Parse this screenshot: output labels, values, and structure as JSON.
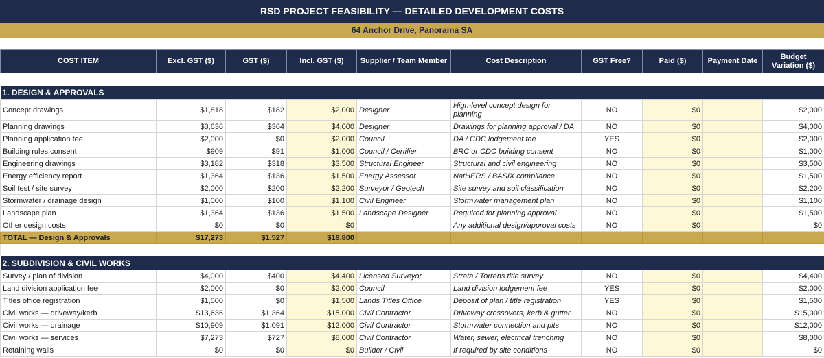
{
  "header": {
    "title": "RSD PROJECT FEASIBILITY — DETAILED DEVELOPMENT COSTS",
    "address": "64 Anchor Drive, Panorama SA"
  },
  "columns": [
    "COST ITEM",
    "Excl. GST ($)",
    "GST ($)",
    "Incl. GST ($)",
    "Supplier / Team Member",
    "Cost Description",
    "GST Free?",
    "Paid ($)",
    "Payment Date",
    "Budget Variation ($)"
  ],
  "sections": [
    {
      "title": "1. DESIGN & APPROVALS",
      "rows": [
        {
          "item": "Concept drawings",
          "excl": "$1,818",
          "gst": "$182",
          "incl": "$2,000",
          "supplier": "Designer",
          "desc": "High-level concept design for planning",
          "free": "NO",
          "paid": "$0",
          "date": "",
          "variation": "$2,000"
        },
        {
          "item": "Planning drawings",
          "excl": "$3,636",
          "gst": "$364",
          "incl": "$4,000",
          "supplier": "Designer",
          "desc": "Drawings for planning approval / DA",
          "free": "NO",
          "paid": "$0",
          "date": "",
          "variation": "$4,000"
        },
        {
          "item": "Planning application fee",
          "excl": "$2,000",
          "gst": "$0",
          "incl": "$2,000",
          "supplier": "Council",
          "desc": "DA / CDC lodgement fee",
          "free": "YES",
          "paid": "$0",
          "date": "",
          "variation": "$2,000"
        },
        {
          "item": "Building rules consent",
          "excl": "$909",
          "gst": "$91",
          "incl": "$1,000",
          "supplier": "Council / Certifier",
          "desc": "BRC or CDC building consent",
          "free": "NO",
          "paid": "$0",
          "date": "",
          "variation": "$1,000"
        },
        {
          "item": "Engineering drawings",
          "excl": "$3,182",
          "gst": "$318",
          "incl": "$3,500",
          "supplier": "Structural Engineer",
          "desc": "Structural and civil engineering",
          "free": "NO",
          "paid": "$0",
          "date": "",
          "variation": "$3,500"
        },
        {
          "item": "Energy efficiency report",
          "excl": "$1,364",
          "gst": "$136",
          "incl": "$1,500",
          "supplier": "Energy Assessor",
          "desc": "NatHERS / BASIX compliance",
          "free": "NO",
          "paid": "$0",
          "date": "",
          "variation": "$1,500"
        },
        {
          "item": "Soil test / site survey",
          "excl": "$2,000",
          "gst": "$200",
          "incl": "$2,200",
          "supplier": "Surveyor / Geotech",
          "desc": "Site survey and soil classification",
          "free": "NO",
          "paid": "$0",
          "date": "",
          "variation": "$2,200"
        },
        {
          "item": "Stormwater / drainage design",
          "excl": "$1,000",
          "gst": "$100",
          "incl": "$1,100",
          "supplier": "Civil Engineer",
          "desc": "Stormwater management plan",
          "free": "NO",
          "paid": "$0",
          "date": "",
          "variation": "$1,100"
        },
        {
          "item": "Landscape plan",
          "excl": "$1,364",
          "gst": "$136",
          "incl": "$1,500",
          "supplier": "Landscape Designer",
          "desc": "Required for planning approval",
          "free": "NO",
          "paid": "$0",
          "date": "",
          "variation": "$1,500"
        },
        {
          "item": "Other design costs",
          "excl": "$0",
          "gst": "$0",
          "incl": "$0",
          "supplier": "",
          "desc": "Any additional design/approval costs",
          "free": "NO",
          "paid": "$0",
          "date": "",
          "variation": "$0"
        }
      ],
      "total": {
        "label": "TOTAL — Design & Approvals",
        "excl": "$17,273",
        "gst": "$1,527",
        "incl": "$18,800"
      }
    },
    {
      "title": "2. SUBDIVISION & CIVIL WORKS",
      "rows": [
        {
          "item": "Survey / plan of division",
          "excl": "$4,000",
          "gst": "$400",
          "incl": "$4,400",
          "supplier": "Licensed Surveyor",
          "desc": "Strata / Torrens title survey",
          "free": "NO",
          "paid": "$0",
          "date": "",
          "variation": "$4,400"
        },
        {
          "item": "Land division application fee",
          "excl": "$2,000",
          "gst": "$0",
          "incl": "$2,000",
          "supplier": "Council",
          "desc": "Land division lodgement fee",
          "free": "YES",
          "paid": "$0",
          "date": "",
          "variation": "$2,000"
        },
        {
          "item": "Titles office registration",
          "excl": "$1,500",
          "gst": "$0",
          "incl": "$1,500",
          "supplier": "Lands Titles Office",
          "desc": "Deposit of plan / title registration",
          "free": "YES",
          "paid": "$0",
          "date": "",
          "variation": "$1,500"
        },
        {
          "item": "Civil works — driveway/kerb",
          "excl": "$13,636",
          "gst": "$1,364",
          "incl": "$15,000",
          "supplier": "Civil Contractor",
          "desc": "Driveway crossovers, kerb & gutter",
          "free": "NO",
          "paid": "$0",
          "date": "",
          "variation": "$15,000"
        },
        {
          "item": "Civil works — drainage",
          "excl": "$10,909",
          "gst": "$1,091",
          "incl": "$12,000",
          "supplier": "Civil Contractor",
          "desc": "Stormwater connection and pits",
          "free": "NO",
          "paid": "$0",
          "date": "",
          "variation": "$12,000"
        },
        {
          "item": "Civil works — services",
          "excl": "$7,273",
          "gst": "$727",
          "incl": "$8,000",
          "supplier": "Civil Contractor",
          "desc": "Water, sewer, electrical trenching",
          "free": "NO",
          "paid": "$0",
          "date": "",
          "variation": "$8,000"
        },
        {
          "item": "Retaining walls",
          "excl": "$0",
          "gst": "$0",
          "incl": "$0",
          "supplier": "Builder / Civil",
          "desc": "If required by site conditions",
          "free": "NO",
          "paid": "$0",
          "date": "",
          "variation": "$0"
        }
      ]
    }
  ]
}
